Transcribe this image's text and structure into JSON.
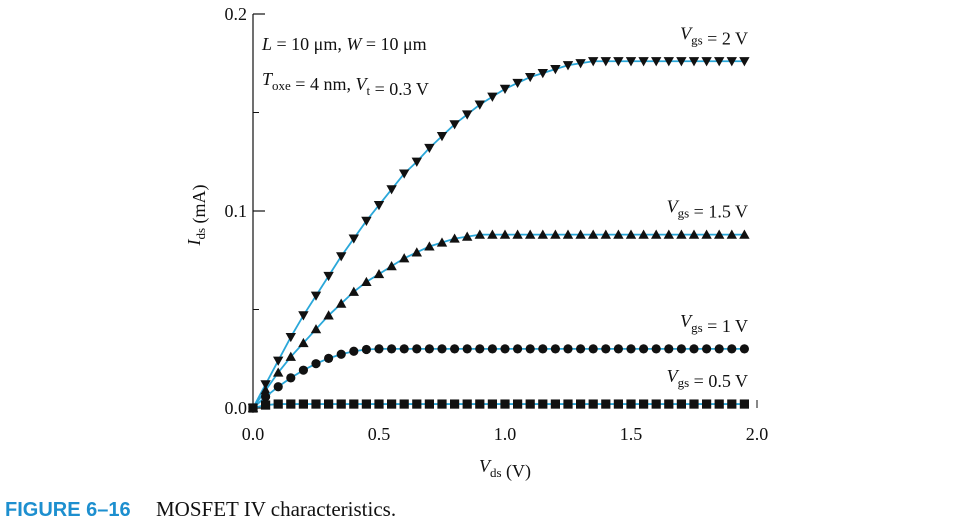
{
  "chart_data": {
    "type": "line",
    "xlabel": "Vds (V)",
    "ylabel": "Ids (mA)",
    "annotations": [
      "L = 10 μm, W = 10 μm",
      "Toxe = 4 nm, Vt = 0.3 V"
    ],
    "caption_label": "FIGURE 6–16",
    "caption_text": "MOSFET IV characteristics.",
    "xlim": [
      0,
      2
    ],
    "ylim": [
      0,
      0.2
    ],
    "xticks": [
      {
        "value": 0,
        "label": "0.0"
      },
      0.5,
      {
        "value": 1,
        "label": "1.0"
      },
      1.5,
      {
        "value": 2,
        "label": "2.0"
      }
    ],
    "yticks": [
      {
        "value": 0,
        "label": "0.0"
      },
      0.1,
      0.2
    ],
    "yminorticks": [
      0.05,
      0.15
    ],
    "line_color": "#2aa7d9",
    "x": [
      0,
      0.05,
      0.1,
      0.15,
      0.2,
      0.25,
      0.3,
      0.35,
      0.4,
      0.45,
      0.5,
      0.55,
      0.6,
      0.65,
      0.7,
      0.75,
      0.8,
      0.85,
      0.9,
      0.95,
      1.0,
      1.05,
      1.1,
      1.15,
      1.2,
      1.25,
      1.3,
      1.35,
      1.4,
      1.45,
      1.5,
      1.55,
      1.6,
      1.65,
      1.7,
      1.75,
      1.8,
      1.85,
      1.9,
      1.95
    ],
    "series": [
      {
        "name": "Vgs = 2 V",
        "color": "#111111",
        "marker": "v",
        "values": [
          0,
          0.012,
          0.024,
          0.036,
          0.047,
          0.057,
          0.067,
          0.077,
          0.086,
          0.095,
          0.103,
          0.111,
          0.119,
          0.125,
          0.132,
          0.138,
          0.144,
          0.149,
          0.154,
          0.158,
          0.162,
          0.165,
          0.168,
          0.17,
          0.172,
          0.174,
          0.175,
          0.176,
          0.176,
          0.176,
          0.176,
          0.176,
          0.176,
          0.176,
          0.176,
          0.176,
          0.176,
          0.176,
          0.176,
          0.176
        ]
      },
      {
        "name": "Vgs = 1.5 V",
        "color": "#111111",
        "marker": "^",
        "values": [
          0,
          0.009,
          0.018,
          0.026,
          0.033,
          0.04,
          0.047,
          0.053,
          0.059,
          0.064,
          0.068,
          0.072,
          0.076,
          0.079,
          0.082,
          0.084,
          0.086,
          0.087,
          0.088,
          0.088,
          0.088,
          0.088,
          0.088,
          0.088,
          0.088,
          0.088,
          0.088,
          0.088,
          0.088,
          0.088,
          0.088,
          0.088,
          0.088,
          0.088,
          0.088,
          0.088,
          0.088,
          0.088,
          0.088,
          0.088
        ]
      },
      {
        "name": "Vgs = 1 V",
        "color": "#111111",
        "marker": "o",
        "values": [
          0,
          0.0057,
          0.0108,
          0.0153,
          0.0192,
          0.0225,
          0.0252,
          0.0273,
          0.0288,
          0.0297,
          0.03,
          0.03,
          0.03,
          0.03,
          0.03,
          0.03,
          0.03,
          0.03,
          0.03,
          0.03,
          0.03,
          0.03,
          0.03,
          0.03,
          0.03,
          0.03,
          0.03,
          0.03,
          0.03,
          0.03,
          0.03,
          0.03,
          0.03,
          0.03,
          0.03,
          0.03,
          0.03,
          0.03,
          0.03,
          0.03
        ]
      },
      {
        "name": "Vgs = 0.5 V",
        "color": "#111111",
        "marker": "s",
        "values": [
          0,
          0.0015,
          0.002,
          0.002,
          0.002,
          0.002,
          0.002,
          0.002,
          0.002,
          0.002,
          0.002,
          0.002,
          0.002,
          0.002,
          0.002,
          0.002,
          0.002,
          0.002,
          0.002,
          0.002,
          0.002,
          0.002,
          0.002,
          0.002,
          0.002,
          0.002,
          0.002,
          0.002,
          0.002,
          0.002,
          0.002,
          0.002,
          0.002,
          0.002,
          0.002,
          0.002,
          0.002,
          0.002,
          0.002,
          0.002
        ]
      }
    ]
  }
}
